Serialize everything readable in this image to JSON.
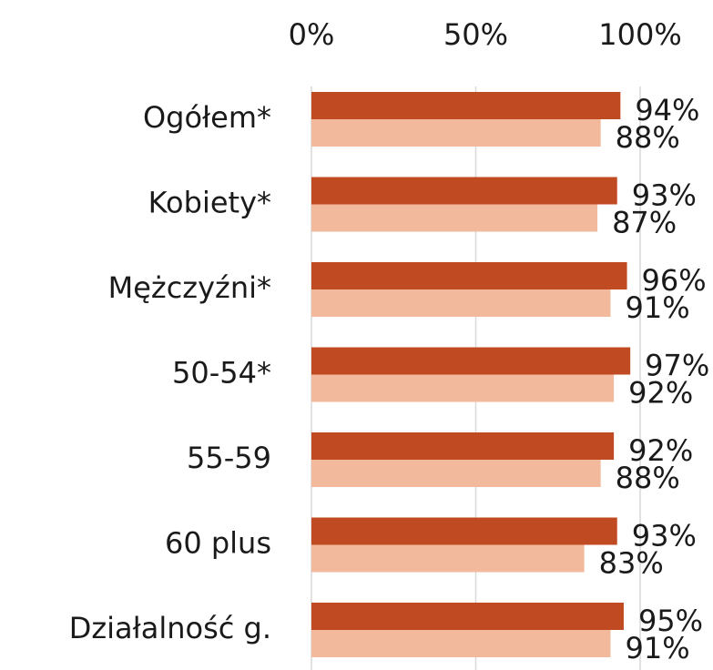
{
  "chart_data": {
    "type": "hbar",
    "categories": [
      "Ogółem*",
      "Kobiety*",
      "Mężczyźni*",
      "50-54*",
      "55-59",
      "60 plus",
      "Działalność g."
    ],
    "series": [
      {
        "color": "#c04a22",
        "values": [
          94,
          93,
          96,
          97,
          92,
          93,
          95
        ],
        "value_labels": [
          "94%",
          "93%",
          "96%",
          "97%",
          "92%",
          "93%",
          "95%"
        ]
      },
      {
        "color": "#f2b99c",
        "values": [
          88,
          87,
          91,
          92,
          88,
          83,
          91
        ],
        "value_labels": [
          "88%",
          "87%",
          "91%",
          "92%",
          "88%",
          "83%",
          "91%"
        ]
      }
    ],
    "xlim": [
      0,
      100
    ],
    "xticks": [
      {
        "value": 0,
        "label": "0%"
      },
      {
        "value": 50,
        "label": "50%"
      },
      {
        "value": 100,
        "label": "100%"
      }
    ],
    "grid": true
  }
}
